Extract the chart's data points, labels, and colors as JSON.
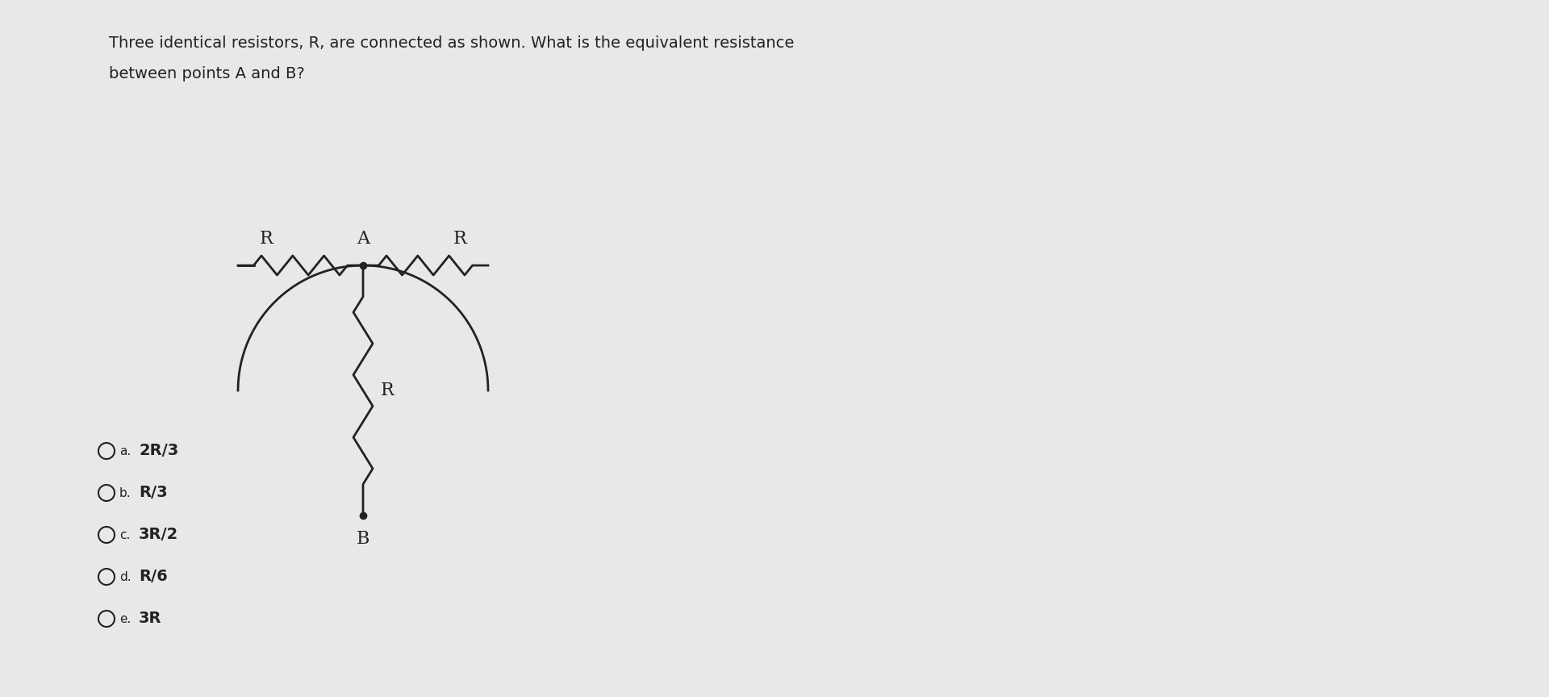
{
  "title_line1": "Three identical resistors, R, are connected as shown. What is the equivalent resistance",
  "title_line2": "between points A and B?",
  "background_color": "#e8e8e8",
  "text_color": "#222222",
  "circuit_color": "#222222",
  "choices": [
    {
      "label": "a.",
      "text": "2R/3"
    },
    {
      "label": "b.",
      "text": "R/3"
    },
    {
      "label": "c.",
      "text": "3R/2"
    },
    {
      "label": "d.",
      "text": "R/6"
    },
    {
      "label": "e.",
      "text": "3R"
    }
  ],
  "title_fontsize": 14,
  "choice_fontsize": 14,
  "label_fontsize": 11
}
